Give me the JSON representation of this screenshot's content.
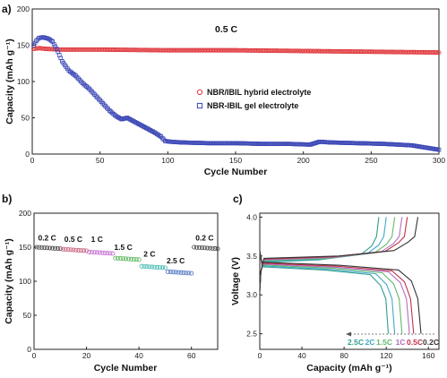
{
  "chart_data": [
    {
      "panel": "a)",
      "type": "scatter",
      "annotation": "0.5 C",
      "xlabel": "Cycle Number",
      "ylabel": "Capacity (mAh g⁻¹)",
      "xlim": [
        0,
        300
      ],
      "ylim": [
        0,
        200
      ],
      "xticks": [
        0,
        50,
        100,
        150,
        200,
        250,
        300
      ],
      "yticks": [
        0,
        50,
        100,
        150,
        200
      ],
      "legend_position": "center-right",
      "series": [
        {
          "name": "NBR/IBIL hybrid electrolyte",
          "color": "#e0393e",
          "marker": "circle",
          "x": [
            1,
            5,
            10,
            20,
            50,
            100,
            150,
            200,
            250,
            300
          ],
          "y": [
            145,
            146,
            145,
            144,
            144,
            143,
            143,
            142,
            141,
            140
          ]
        },
        {
          "name": "NBR-IBIL gel electrolyte",
          "color": "#3a46b5",
          "marker": "square",
          "x": [
            1,
            3,
            5,
            8,
            12,
            15,
            18,
            22,
            27,
            32,
            37,
            42,
            47,
            52,
            57,
            62,
            66,
            70,
            75,
            80,
            85,
            90,
            95,
            98,
            102,
            110,
            130,
            150,
            170,
            190,
            205,
            212,
            220,
            240,
            260,
            280,
            300
          ],
          "y": [
            150,
            156,
            160,
            161,
            159,
            155,
            145,
            128,
            115,
            108,
            98,
            90,
            80,
            70,
            60,
            52,
            48,
            50,
            45,
            40,
            35,
            30,
            24,
            18,
            17,
            16,
            15,
            15,
            14,
            14,
            13,
            17,
            16,
            15,
            14,
            12,
            6
          ]
        }
      ]
    },
    {
      "panel": "b)",
      "type": "scatter",
      "xlabel": "Cycle Number",
      "ylabel": "Capacity (mAh g⁻¹)",
      "xlim": [
        0,
        70
      ],
      "ylim": [
        0,
        200
      ],
      "xticks": [
        0,
        20,
        40,
        60
      ],
      "yticks": [
        0,
        50,
        100,
        150,
        200
      ],
      "rate_labels": [
        {
          "text": "0.2 C",
          "x": 5,
          "y": 160
        },
        {
          "text": "0.5 C",
          "x": 15,
          "y": 158
        },
        {
          "text": "1 C",
          "x": 24,
          "y": 158
        },
        {
          "text": "1.5 C",
          "x": 34,
          "y": 146
        },
        {
          "text": "2 C",
          "x": 44,
          "y": 136
        },
        {
          "text": "2.5 C",
          "x": 54,
          "y": 126
        },
        {
          "text": "0.2 C",
          "x": 65,
          "y": 160
        }
      ],
      "segments": [
        {
          "rate": "0.2 C",
          "color": "#444444",
          "x_start": 1,
          "x_end": 10,
          "y": 150
        },
        {
          "rate": "0.5 C",
          "color": "#c85a7a",
          "x_start": 11,
          "x_end": 20,
          "y": 147
        },
        {
          "rate": "1 C",
          "color": "#c36bd1",
          "x_start": 21,
          "x_end": 30,
          "y": 143
        },
        {
          "rate": "1.5 C",
          "color": "#5bb55b",
          "x_start": 31,
          "x_end": 40,
          "y": 134
        },
        {
          "rate": "2 C",
          "color": "#40b8b0",
          "x_start": 41,
          "x_end": 50,
          "y": 122
        },
        {
          "rate": "2.5 C",
          "color": "#4a70c0",
          "x_start": 51,
          "x_end": 60,
          "y": 114
        },
        {
          "rate": "0.2 C",
          "color": "#444444",
          "x_start": 61,
          "x_end": 70,
          "y": 150
        }
      ]
    },
    {
      "panel": "c)",
      "type": "line",
      "xlabel": "Capacity (mAh g⁻¹)",
      "ylabel": "Voltage (V)",
      "xlim": [
        0,
        170
      ],
      "ylim": [
        2.3,
        4.05
      ],
      "xticks": [
        0,
        40,
        80,
        120,
        160
      ],
      "yticks": [
        2.5,
        3.0,
        3.5,
        4.0
      ],
      "legend_position": "bottom-right",
      "series": [
        {
          "name": "2.5C",
          "color": "#2e9d8f",
          "charge_end": 113,
          "discharge_end": 122
        },
        {
          "name": "2C",
          "color": "#3fa8c8",
          "charge_end": 120,
          "discharge_end": 128
        },
        {
          "name": "1.5C",
          "color": "#64b86a",
          "charge_end": 128,
          "discharge_end": 135
        },
        {
          "name": "1C",
          "color": "#b06fc0",
          "charge_end": 135,
          "discharge_end": 142
        },
        {
          "name": "0.5C",
          "color": "#c0304a",
          "charge_end": 140,
          "discharge_end": 146
        },
        {
          "name": "0.2C",
          "color": "#333333",
          "charge_end": 150,
          "discharge_end": 153
        }
      ]
    }
  ]
}
